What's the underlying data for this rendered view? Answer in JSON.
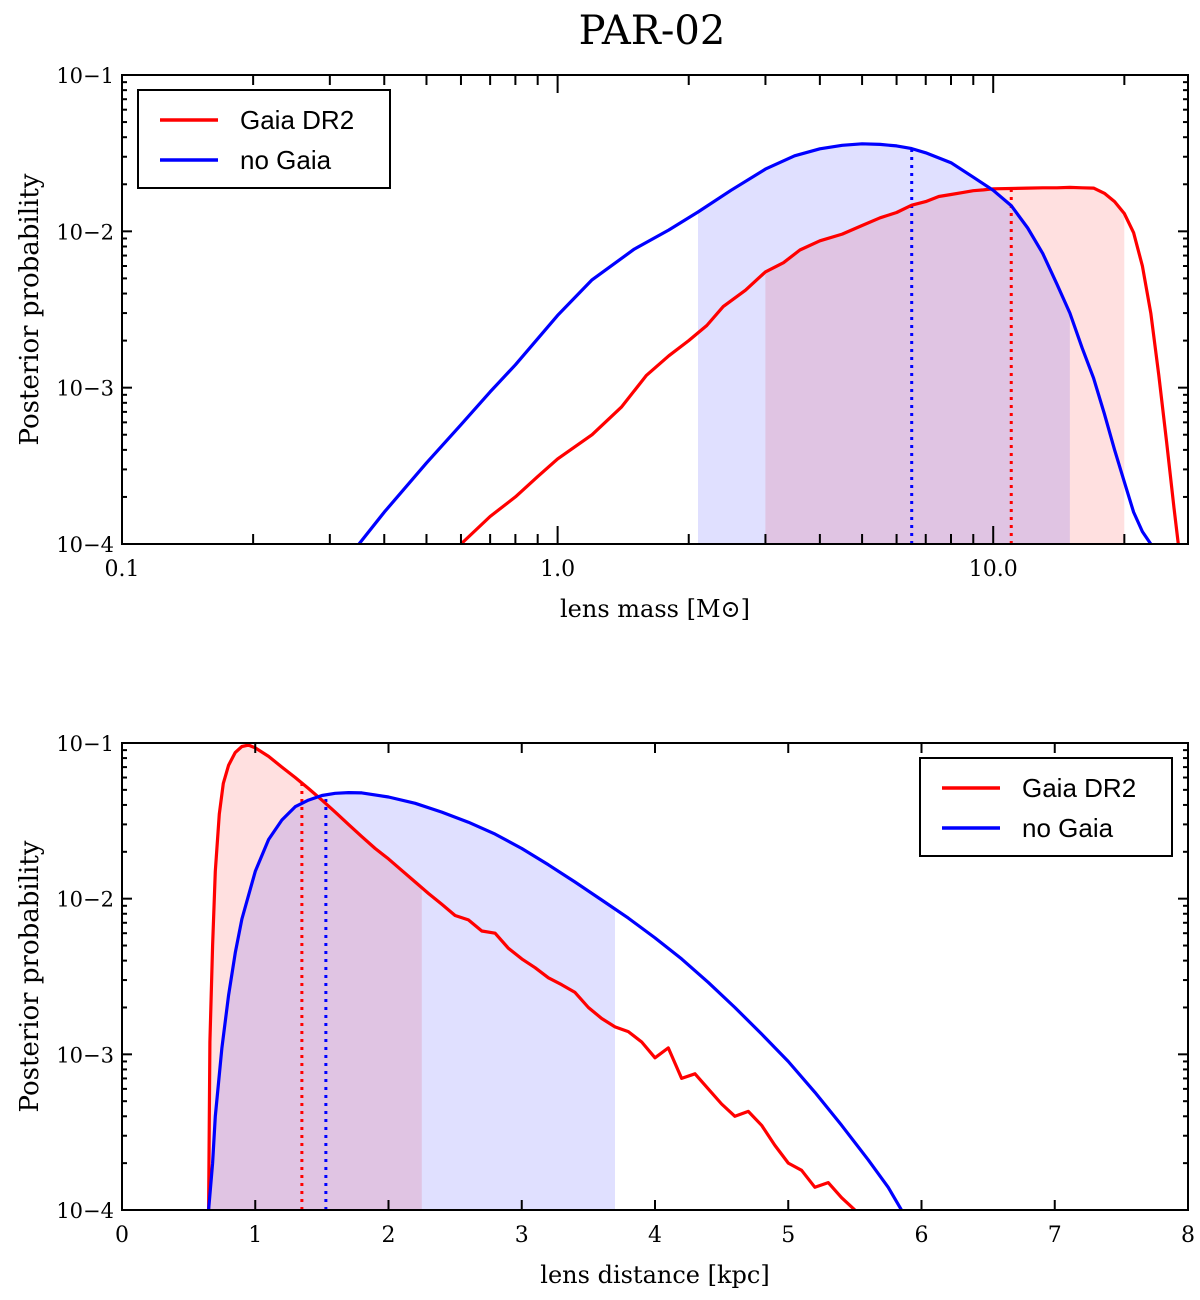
{
  "title": "PAR-02",
  "colors": {
    "gaia": "#ff0000",
    "nogaia": "#0000ff",
    "gaia_fill": "#ffcccc",
    "nogaia_fill": "#ccccff"
  },
  "chart_data": [
    {
      "type": "line",
      "xscale": "log",
      "yscale": "log",
      "xlabel": "lens mass [M⊙]",
      "ylabel": "Posterior probability",
      "xlim": [
        0.1,
        28
      ],
      "ylim": [
        0.0001,
        0.1
      ],
      "xticks": [
        0.1,
        1.0,
        10.0
      ],
      "xtick_labels": [
        "0.1",
        "1.0",
        "10.0"
      ],
      "yticks": [
        0.0001,
        0.001,
        0.01,
        0.1
      ],
      "ytick_labels": [
        "10−4",
        "10−3",
        "10−2",
        "10−1"
      ],
      "legend_loc": "top-left",
      "series": [
        {
          "name": "Gaia DR2",
          "color_key": "gaia",
          "x": [
            0.6,
            0.7,
            0.8,
            0.9,
            1.0,
            1.2,
            1.4,
            1.6,
            1.8,
            2.0,
            2.2,
            2.4,
            2.7,
            3.0,
            3.3,
            3.6,
            4.0,
            4.5,
            5.0,
            5.5,
            6.0,
            6.5,
            7.0,
            7.5,
            8.0,
            8.5,
            9.0,
            9.5,
            10.0,
            11.0,
            12.0,
            13.0,
            14.0,
            15.0,
            16.0,
            17.0,
            18.0,
            19.0,
            20.0,
            21.0,
            22.0,
            23.0,
            24.0,
            25.0,
            26.0,
            26.6
          ],
          "y": [
            0.0001,
            0.00015,
            0.0002,
            0.00027,
            0.00035,
            0.0005,
            0.00075,
            0.0012,
            0.0016,
            0.002,
            0.0025,
            0.0033,
            0.0042,
            0.0055,
            0.0063,
            0.0076,
            0.0087,
            0.0096,
            0.0109,
            0.0122,
            0.0132,
            0.0147,
            0.0155,
            0.0167,
            0.0172,
            0.0177,
            0.0182,
            0.0184,
            0.0187,
            0.0188,
            0.0189,
            0.019,
            0.019,
            0.0191,
            0.019,
            0.0189,
            0.0175,
            0.0155,
            0.013,
            0.0098,
            0.006,
            0.003,
            0.0012,
            0.00045,
            0.00017,
            0.0001
          ],
          "median": 11.0,
          "interval": [
            3.0,
            20.0
          ]
        },
        {
          "name": "no Gaia",
          "color_key": "nogaia",
          "x": [
            0.35,
            0.4,
            0.5,
            0.6,
            0.7,
            0.8,
            1.0,
            1.2,
            1.5,
            1.8,
            2.1,
            2.5,
            3.0,
            3.5,
            4.0,
            4.5,
            5.0,
            5.5,
            6.0,
            6.5,
            7.0,
            8.0,
            9.0,
            10.0,
            11.0,
            12.0,
            13.0,
            14.0,
            15.0,
            16.0,
            17.0,
            18.0,
            19.0,
            20.0,
            21.0,
            22.0,
            23.0
          ],
          "y": [
            0.0001,
            0.00016,
            0.00033,
            0.00058,
            0.00094,
            0.0014,
            0.0029,
            0.0049,
            0.0077,
            0.0102,
            0.0133,
            0.0183,
            0.025,
            0.0304,
            0.0337,
            0.0355,
            0.0363,
            0.036,
            0.0352,
            0.0338,
            0.0318,
            0.0275,
            0.0222,
            0.0183,
            0.0146,
            0.0105,
            0.0072,
            0.0046,
            0.003,
            0.0018,
            0.00115,
            0.00068,
            0.0004,
            0.00025,
            0.00016,
            0.00012,
            0.0001
          ],
          "median": 6.5,
          "interval": [
            2.1,
            15.0
          ]
        }
      ]
    },
    {
      "type": "line",
      "xscale": "linear",
      "yscale": "log",
      "xlabel": "lens distance [kpc]",
      "ylabel": "Posterior probability",
      "xlim": [
        0,
        8
      ],
      "ylim": [
        0.0001,
        0.1
      ],
      "xticks": [
        0,
        1,
        2,
        3,
        4,
        5,
        6,
        7,
        8
      ],
      "xtick_labels": [
        "0",
        "1",
        "2",
        "3",
        "4",
        "5",
        "6",
        "7",
        "8"
      ],
      "yticks": [
        0.0001,
        0.001,
        0.01,
        0.1
      ],
      "ytick_labels": [
        "10−4",
        "10−3",
        "10−2",
        "10−1"
      ],
      "legend_loc": "top-right",
      "series": [
        {
          "name": "Gaia DR2",
          "color_key": "gaia",
          "x": [
            0.65,
            0.66,
            0.68,
            0.7,
            0.73,
            0.76,
            0.8,
            0.85,
            0.9,
            0.95,
            1.0,
            1.1,
            1.2,
            1.3,
            1.4,
            1.5,
            1.6,
            1.7,
            1.8,
            1.9,
            2.0,
            2.1,
            2.2,
            2.3,
            2.4,
            2.5,
            2.6,
            2.7,
            2.8,
            2.9,
            3.0,
            3.1,
            3.2,
            3.3,
            3.4,
            3.5,
            3.6,
            3.7,
            3.8,
            3.9,
            4.0,
            4.1,
            4.2,
            4.3,
            4.4,
            4.5,
            4.6,
            4.7,
            4.8,
            4.9,
            5.0,
            5.1,
            5.2,
            5.3,
            5.4,
            5.5
          ],
          "y": [
            0.0001,
            0.0012,
            0.005,
            0.015,
            0.035,
            0.055,
            0.072,
            0.087,
            0.095,
            0.097,
            0.093,
            0.082,
            0.07,
            0.06,
            0.051,
            0.043,
            0.036,
            0.03,
            0.025,
            0.021,
            0.018,
            0.0152,
            0.0128,
            0.0108,
            0.0092,
            0.0078,
            0.0073,
            0.0062,
            0.006,
            0.0048,
            0.0041,
            0.0036,
            0.0031,
            0.0028,
            0.0025,
            0.002,
            0.0017,
            0.0015,
            0.0014,
            0.0012,
            0.00095,
            0.0011,
            0.0007,
            0.00075,
            0.0006,
            0.00048,
            0.0004,
            0.00043,
            0.00035,
            0.00026,
            0.0002,
            0.00018,
            0.00014,
            0.00015,
            0.00012,
            0.0001
          ],
          "median": 1.35,
          "interval": [
            0.65,
            2.25
          ]
        },
        {
          "name": "no Gaia",
          "color_key": "nogaia",
          "x": [
            0.65,
            0.68,
            0.7,
            0.75,
            0.8,
            0.85,
            0.9,
            1.0,
            1.1,
            1.2,
            1.3,
            1.4,
            1.5,
            1.6,
            1.7,
            1.8,
            2.0,
            2.2,
            2.4,
            2.6,
            2.8,
            3.0,
            3.2,
            3.4,
            3.6,
            3.8,
            4.0,
            4.2,
            4.4,
            4.6,
            4.8,
            5.0,
            5.2,
            5.4,
            5.6,
            5.75,
            5.85
          ],
          "y": [
            0.0001,
            0.0002,
            0.0004,
            0.0011,
            0.0024,
            0.0045,
            0.0074,
            0.015,
            0.024,
            0.032,
            0.039,
            0.043,
            0.046,
            0.0475,
            0.048,
            0.0478,
            0.045,
            0.041,
            0.036,
            0.031,
            0.026,
            0.021,
            0.0165,
            0.0128,
            0.0098,
            0.0075,
            0.0056,
            0.0041,
            0.0029,
            0.002,
            0.00135,
            0.0009,
            0.00057,
            0.00035,
            0.00021,
            0.00014,
            0.0001
          ],
          "median": 1.53,
          "interval": [
            0.65,
            3.7
          ]
        }
      ]
    }
  ]
}
